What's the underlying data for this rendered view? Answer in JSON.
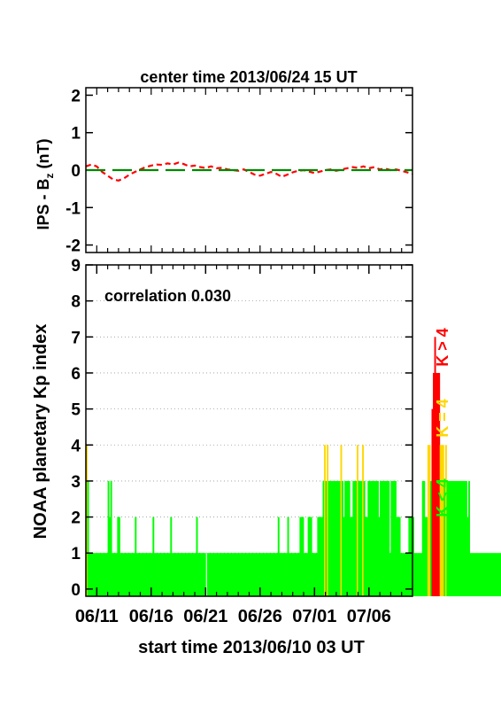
{
  "chart_data": [
    {
      "type": "line",
      "title": "center time 2013/06/24 15 UT",
      "ylabel": "IPS - B",
      "ylabel_subscript": "z",
      "ylabel_unit": " (nT)",
      "ylim": [
        -2.2,
        2.2
      ],
      "y_ticks": [
        -2,
        -1,
        0,
        1,
        2
      ],
      "xlim": [
        0,
        30
      ],
      "series": [
        {
          "color": "#ff0000",
          "dash": "dashed",
          "x": [
            0,
            0.5,
            1,
            1.5,
            2,
            2.5,
            3,
            3.5,
            4,
            4.5,
            5,
            5.5,
            6,
            6.5,
            7,
            7.5,
            8,
            8.5,
            9,
            9.5,
            10,
            10.5,
            11,
            11.5,
            12,
            12.5,
            13,
            13.5,
            14,
            14.5,
            15,
            15.5,
            16,
            16.5,
            17,
            17.5,
            18,
            18.5,
            19,
            19.5,
            20,
            20.5,
            21,
            21.5,
            22,
            22.5,
            23,
            23.5,
            24,
            24.5,
            25,
            25.5,
            26,
            26.5,
            27,
            27.5,
            28,
            28.5,
            29,
            29.5,
            30
          ],
          "values": [
            0.1,
            0.15,
            0.1,
            -0.05,
            -0.15,
            -0.25,
            -0.28,
            -0.22,
            -0.12,
            -0.05,
            0.02,
            0.08,
            0.12,
            0.15,
            0.14,
            0.18,
            0.15,
            0.2,
            0.16,
            0.1,
            0.12,
            0.08,
            0.06,
            0.1,
            0.05,
            0.06,
            0.02,
            0.0,
            -0.02,
            0.02,
            -0.05,
            -0.12,
            -0.15,
            -0.1,
            -0.05,
            -0.1,
            -0.18,
            -0.12,
            -0.06,
            -0.02,
            0.0,
            -0.04,
            -0.08,
            -0.04,
            0.0,
            0.02,
            -0.02,
            0.02,
            0.05,
            0.08,
            0.06,
            0.1,
            0.05,
            0.08,
            0.02,
            0.04,
            0.0,
            0.02,
            -0.02,
            -0.06,
            -0.1
          ]
        },
        {
          "color": "#008800",
          "dash": "long-dash",
          "x": [
            0,
            30
          ],
          "values": [
            0,
            0
          ]
        }
      ]
    },
    {
      "type": "bar",
      "ylabel": "NOAA planetary Kp index",
      "xlabel": "start time 2013/06/10 03 UT",
      "annotation": "correlation 0.030",
      "ylim": [
        -0.2,
        9
      ],
      "y_ticks": [
        0,
        1,
        2,
        3,
        4,
        5,
        6,
        7,
        8,
        9
      ],
      "xlim": [
        0,
        30
      ],
      "x_ticks": [
        1,
        6,
        11,
        16,
        21,
        26
      ],
      "x_tick_labels": [
        "06/11",
        "06/16",
        "06/21",
        "06/26",
        "07/01",
        "07/06"
      ],
      "x_minor_ticks": [
        2,
        3,
        4,
        5,
        7,
        8,
        9,
        10,
        12,
        13,
        14,
        15,
        17,
        18,
        19,
        20,
        22,
        23,
        24,
        25,
        27,
        28,
        29
      ],
      "grid": "dotted horizontal",
      "bar_width": 0.125,
      "colors": {
        "low": "#00ff00",
        "mid": "#ffd700",
        "high": "#ff0000"
      },
      "legend": [
        "K < 4",
        "K = 4",
        "K > 4"
      ],
      "legend_placement": "right, vertical",
      "values": [
        4,
        3,
        1,
        1,
        1,
        1,
        1,
        1,
        1,
        1,
        1,
        1,
        1,
        1,
        1,
        1,
        3,
        2,
        3,
        1,
        1,
        1,
        1,
        2,
        2,
        1,
        1,
        1,
        1,
        1,
        1,
        1,
        1,
        1,
        1,
        1,
        2,
        1,
        1,
        1,
        1,
        1,
        1,
        1,
        1,
        1,
        1,
        1,
        1,
        2,
        1,
        1,
        1,
        1,
        1,
        1,
        1,
        1,
        1,
        1,
        1,
        1,
        2,
        1,
        1,
        1,
        1,
        1,
        1,
        1,
        1,
        1,
        1,
        1,
        1,
        1,
        1,
        1,
        1,
        1,
        1,
        2,
        1,
        1,
        1,
        1,
        1,
        1,
        0,
        1,
        1,
        1,
        1,
        1,
        1,
        1,
        1,
        1,
        1,
        1,
        1,
        1,
        1,
        1,
        1,
        1,
        1,
        1,
        1,
        1,
        1,
        1,
        1,
        1,
        1,
        1,
        1,
        1,
        1,
        1,
        1,
        1,
        1,
        1,
        1,
        1,
        1,
        1,
        1,
        1,
        1,
        1,
        1,
        1,
        1,
        1,
        1,
        1,
        1,
        1,
        1,
        2,
        1,
        1,
        1,
        1,
        1,
        1,
        2,
        1,
        1,
        1,
        1,
        1,
        1,
        1,
        1,
        2,
        2,
        2,
        1,
        1,
        1,
        2,
        2,
        2,
        1,
        1,
        1,
        1,
        2,
        2,
        2,
        2,
        3,
        4,
        3,
        4,
        3,
        3,
        3,
        3,
        3,
        3,
        3,
        3,
        3,
        4,
        3,
        2,
        3,
        3,
        3,
        3,
        2,
        2,
        3,
        3,
        3,
        4,
        3,
        3,
        3,
        4,
        3,
        2,
        2,
        3,
        3,
        3,
        3,
        3,
        3,
        3,
        3,
        2,
        3,
        3,
        3,
        3,
        3,
        3,
        3,
        1,
        3,
        3,
        3,
        3,
        2,
        2,
        2,
        1,
        1,
        1,
        1,
        1,
        1,
        2,
        2,
        2,
        2,
        1,
        1,
        1,
        1,
        1,
        1,
        3,
        3,
        2,
        2,
        4,
        4,
        3,
        5,
        6,
        7,
        6,
        6,
        6,
        4,
        4,
        4,
        3,
        4,
        3,
        3,
        3,
        3,
        3,
        3,
        3,
        3,
        3,
        3,
        3,
        3,
        3,
        3,
        3,
        2,
        3,
        1,
        1,
        1,
        1,
        1,
        1,
        1,
        1,
        1,
        1,
        1,
        1,
        1,
        1,
        1,
        1,
        1,
        1,
        1,
        1,
        1,
        1,
        1,
        1,
        1,
        1,
        1,
        1,
        1,
        1,
        1,
        1,
        1,
        1,
        1,
        1,
        1,
        1,
        1,
        1,
        1,
        2,
        1,
        1,
        1,
        2,
        1,
        1,
        1,
        2,
        1,
        1,
        1,
        1,
        1,
        1,
        1,
        1,
        2,
        1,
        1,
        2,
        2,
        3,
        3,
        4,
        4,
        4,
        3,
        4,
        3,
        3,
        3,
        2,
        2,
        2,
        1,
        1,
        2,
        1,
        1,
        2,
        1,
        2,
        1,
        1,
        1,
        1,
        1,
        1,
        1,
        1,
        1,
        1,
        1
      ]
    }
  ]
}
